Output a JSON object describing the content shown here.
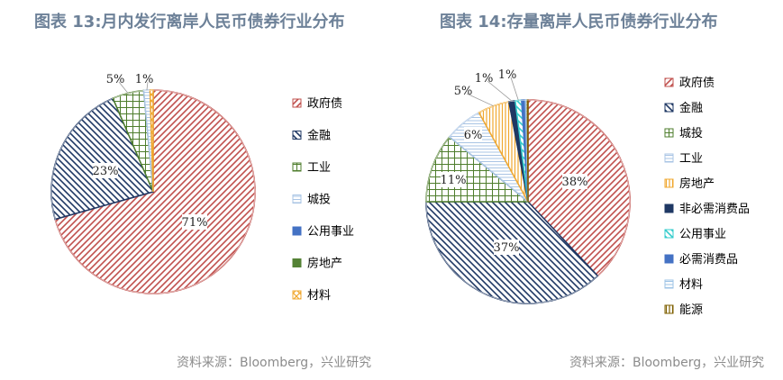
{
  "page": {
    "title_1": "图表 13:月内发行离岸人民币债券行业分布",
    "title_2": "图表 14:存量离岸人民币债券行业分布",
    "source_1": "资料来源：Bloomberg，兴业研究",
    "source_2": "资料来源：Bloomberg，兴业研究"
  },
  "chart_data": [
    {
      "type": "pie",
      "title": "图表 13:月内发行离岸人民币债券行业分布",
      "start_angle_deg": 0,
      "slices": [
        {
          "name": "政府债",
          "value": 71,
          "label": "71%",
          "color": "#c0504d",
          "pattern": "diag-right"
        },
        {
          "name": "金融",
          "value": 23,
          "label": "23%",
          "color": "#1f3864",
          "pattern": "diag-left"
        },
        {
          "name": "工业",
          "value": 5,
          "label": "5%",
          "color": "#4e7d2c",
          "pattern": "grid"
        },
        {
          "name": "城投",
          "value": 1,
          "label": "1%",
          "color": "#a9c4e4",
          "pattern": "hlines"
        },
        {
          "name": "公用事业",
          "value": 0,
          "label": "",
          "color": "#4472c4",
          "pattern": "solid"
        },
        {
          "name": "房地产",
          "value": 0,
          "label": "",
          "color": "#548235",
          "pattern": "solid"
        },
        {
          "name": "材料",
          "value": 0.5,
          "label": "",
          "color": "#f0a830",
          "pattern": "cross"
        }
      ],
      "legend_position": "right"
    },
    {
      "type": "pie",
      "title": "图表 14:存量离岸人民币债券行业分布",
      "start_angle_deg": 0,
      "slices": [
        {
          "name": "政府债",
          "value": 38,
          "label": "38%",
          "color": "#c0504d",
          "pattern": "diag-right"
        },
        {
          "name": "金融",
          "value": 37,
          "label": "37%",
          "color": "#1f3864",
          "pattern": "diag-left"
        },
        {
          "name": "城投",
          "value": 11,
          "label": "11%",
          "color": "#4e7d2c",
          "pattern": "grid"
        },
        {
          "name": "工业",
          "value": 6,
          "label": "6%",
          "color": "#a9c4e4",
          "pattern": "hlines"
        },
        {
          "name": "房地产",
          "value": 5,
          "label": "5%",
          "color": "#f0a830",
          "pattern": "vlines"
        },
        {
          "name": "非必需消费品",
          "value": 1,
          "label": "1%",
          "color": "#1f3864",
          "pattern": "solid"
        },
        {
          "name": "公用事业",
          "value": 1,
          "label": "1%",
          "color": "#33cccc",
          "pattern": "diag-left"
        },
        {
          "name": "必需消费品",
          "value": 0.6,
          "label": "",
          "color": "#4472c4",
          "pattern": "solid"
        },
        {
          "name": "材料",
          "value": 0.3,
          "label": "",
          "color": "#9dc3e6",
          "pattern": "hlines"
        },
        {
          "name": "能源",
          "value": 0.1,
          "label": "",
          "color": "#7f6000",
          "pattern": "vlines"
        }
      ],
      "legend_position": "right"
    }
  ]
}
